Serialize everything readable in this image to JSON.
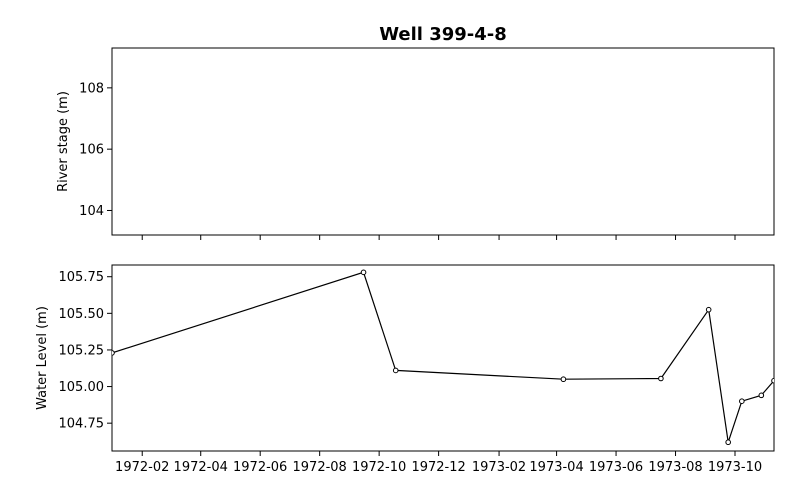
{
  "chart_data": {
    "title": "Well 399-4-8",
    "panels": [
      {
        "type": "line",
        "ylabel": "River stage (m)",
        "ylim": [
          103.2,
          109.3
        ],
        "yticks": [
          104,
          106,
          108
        ],
        "series": [],
        "show_xtick_labels": false
      },
      {
        "type": "line",
        "ylabel": "Water Level (m)",
        "ylim": [
          104.56,
          105.83
        ],
        "yticks": [
          104.75,
          105.0,
          105.25,
          105.5,
          105.75
        ],
        "yticklabels": [
          "104.75",
          "105.00",
          "105.25",
          "105.50",
          "105.75"
        ],
        "series": [
          {
            "color": "#000000",
            "marker": "circle-open",
            "x": [
              "1972-01-01",
              "1972-09-15",
              "1972-10-18",
              "1973-04-08",
              "1973-07-17",
              "1973-09-04",
              "1973-09-24",
              "1973-10-08",
              "1973-10-28",
              "1973-11-10"
            ],
            "y": [
              105.23,
              105.78,
              105.11,
              105.05,
              105.055,
              105.525,
              104.62,
              104.9,
              104.94,
              105.04
            ]
          }
        ],
        "show_xtick_labels": true
      }
    ],
    "xlim": [
      "1972-01-01",
      "1973-11-10"
    ],
    "xticks": [
      "1972-02-01",
      "1972-04-01",
      "1972-06-01",
      "1972-08-01",
      "1972-10-01",
      "1972-12-01",
      "1973-02-01",
      "1973-04-01",
      "1973-06-01",
      "1973-08-01",
      "1973-10-01"
    ],
    "xticklabels": [
      "1972-02",
      "1972-04",
      "1972-06",
      "1972-08",
      "1972-10",
      "1972-12",
      "1973-02",
      "1973-04",
      "1973-06",
      "1973-08",
      "1973-10"
    ],
    "grid": false,
    "legend": "none"
  }
}
